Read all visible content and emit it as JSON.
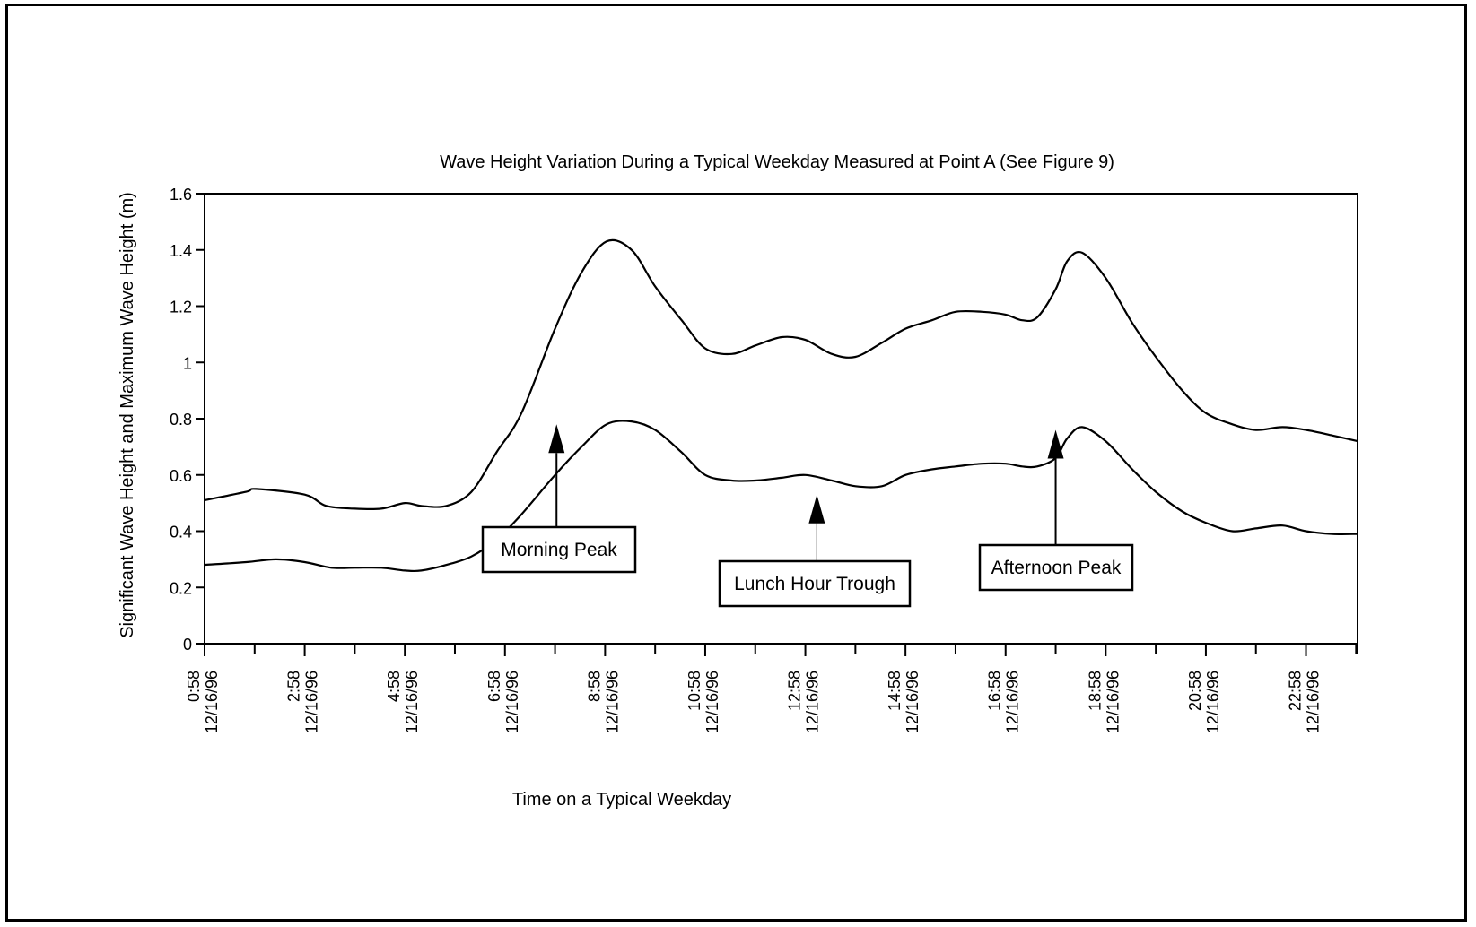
{
  "chart_data": {
    "type": "line",
    "title": "Wave Height Variation During a Typical Weekday Measured at Point A (See Figure 9)",
    "xlabel": "Time on a Typical Weekday",
    "ylabel": "Significant Wave Height and Maximum Wave Height (m)",
    "ylim": [
      0,
      1.6
    ],
    "yticks": [
      "0",
      "0.2",
      "0.4",
      "0.6",
      "0.8",
      "1",
      "1.2",
      "1.4",
      "1.6"
    ],
    "xlim": [
      0.97,
      24.0
    ],
    "xticklabels": [
      {
        "x": 0.97,
        "time": "0:58",
        "date": "12/16/96"
      },
      {
        "x": 2.97,
        "time": "2:58",
        "date": "12/16/96"
      },
      {
        "x": 4.97,
        "time": "4:58",
        "date": "12/16/96"
      },
      {
        "x": 6.97,
        "time": "6:58",
        "date": "12/16/96"
      },
      {
        "x": 8.97,
        "time": "8:58",
        "date": "12/16/96"
      },
      {
        "x": 10.97,
        "time": "10:58",
        "date": "12/16/96"
      },
      {
        "x": 12.97,
        "time": "12:58",
        "date": "12/16/96"
      },
      {
        "x": 14.97,
        "time": "14:58",
        "date": "12/16/96"
      },
      {
        "x": 16.97,
        "time": "16:58",
        "date": "12/16/96"
      },
      {
        "x": 18.97,
        "time": "18:58",
        "date": "12/16/96"
      },
      {
        "x": 20.97,
        "time": "20:58",
        "date": "12/16/96"
      },
      {
        "x": 22.97,
        "time": "22:58",
        "date": "12/16/96"
      }
    ],
    "series": [
      {
        "x": [
          0.97,
          1.8,
          2.0,
          2.97,
          3.4,
          3.97,
          4.5,
          4.97,
          5.3,
          5.8,
          6.3,
          6.8,
          7.3,
          7.97,
          8.5,
          9.0,
          9.5,
          9.97,
          10.5,
          10.97,
          11.5,
          11.97,
          12.5,
          12.97,
          13.5,
          13.97,
          14.5,
          14.97,
          15.5,
          15.97,
          16.5,
          16.97,
          17.3,
          17.6,
          17.97,
          18.2,
          18.5,
          18.97,
          19.5,
          19.97,
          20.5,
          20.97,
          21.5,
          21.97,
          22.5,
          22.97,
          23.5,
          24.0
        ],
        "values": [
          0.51,
          0.54,
          0.55,
          0.53,
          0.49,
          0.48,
          0.48,
          0.5,
          0.49,
          0.49,
          0.54,
          0.68,
          0.82,
          1.12,
          1.32,
          1.43,
          1.4,
          1.27,
          1.15,
          1.05,
          1.03,
          1.06,
          1.09,
          1.08,
          1.03,
          1.02,
          1.07,
          1.12,
          1.15,
          1.18,
          1.18,
          1.17,
          1.15,
          1.16,
          1.26,
          1.36,
          1.39,
          1.3,
          1.14,
          1.02,
          0.9,
          0.82,
          0.78,
          0.76,
          0.77,
          0.76,
          0.74,
          0.72
        ]
      },
      {
        "x": [
          0.97,
          1.8,
          2.4,
          2.97,
          3.5,
          3.97,
          4.5,
          4.97,
          5.3,
          5.8,
          6.3,
          6.8,
          7.3,
          7.97,
          8.5,
          9.0,
          9.5,
          9.97,
          10.5,
          10.97,
          11.5,
          11.97,
          12.5,
          12.97,
          13.5,
          13.97,
          14.5,
          14.97,
          15.5,
          15.97,
          16.5,
          16.97,
          17.3,
          17.6,
          17.97,
          18.2,
          18.5,
          18.97,
          19.5,
          19.97,
          20.5,
          20.97,
          21.5,
          21.97,
          22.5,
          22.97,
          23.5,
          24.0
        ],
        "values": [
          0.28,
          0.29,
          0.3,
          0.29,
          0.27,
          0.27,
          0.27,
          0.26,
          0.26,
          0.28,
          0.31,
          0.37,
          0.46,
          0.6,
          0.7,
          0.78,
          0.79,
          0.76,
          0.68,
          0.6,
          0.58,
          0.58,
          0.59,
          0.6,
          0.58,
          0.56,
          0.56,
          0.6,
          0.62,
          0.63,
          0.64,
          0.64,
          0.63,
          0.63,
          0.66,
          0.73,
          0.77,
          0.72,
          0.62,
          0.54,
          0.47,
          0.43,
          0.4,
          0.41,
          0.42,
          0.4,
          0.39,
          0.39
        ]
      }
    ],
    "annotations": [
      {
        "text": "Morning Peak",
        "arrow_x": 8.0,
        "arrow_y": 0.78
      },
      {
        "text": "Lunch Hour Trough",
        "arrow_x": 13.2,
        "arrow_y": 0.53
      },
      {
        "text": "Afternoon Peak",
        "arrow_x": 17.97,
        "arrow_y": 0.76
      }
    ]
  }
}
